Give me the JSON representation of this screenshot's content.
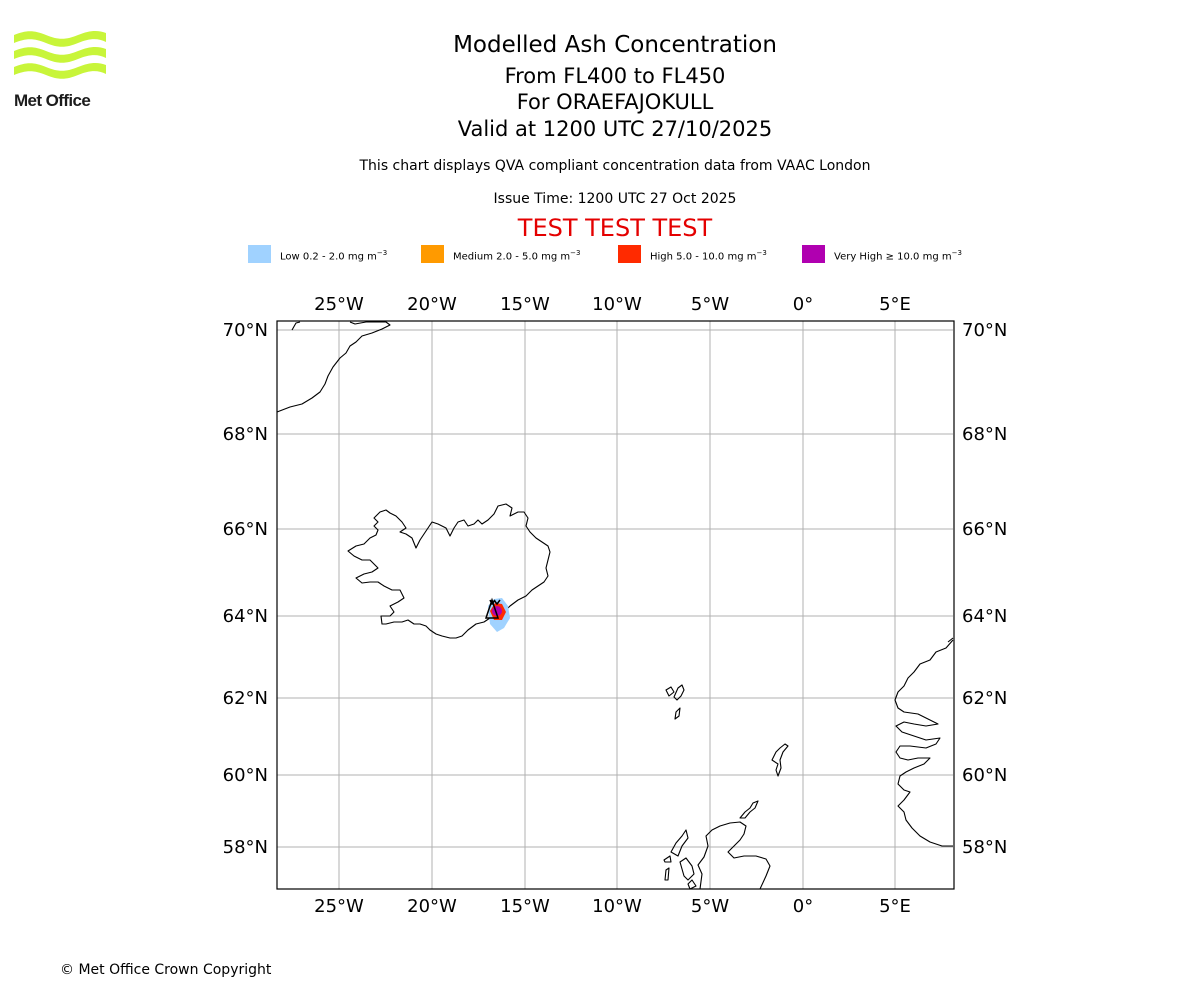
{
  "branding": {
    "logo_text": "Met Office",
    "logo_color": "#c8f53a"
  },
  "header": {
    "title": "Modelled Ash Concentration",
    "level_range": "From FL400 to FL450",
    "volcano": "For ORAEFAJOKULL",
    "valid_time": "Valid at 1200 UTC 27/10/2025",
    "description": "This chart displays QVA compliant concentration data from VAAC London",
    "issue_time": "Issue Time: 1200 UTC 27 Oct 2025",
    "test_banner": "TEST TEST TEST"
  },
  "legend": [
    {
      "label": "Low 0.2 - 2.0 mg m",
      "exponent": "−3",
      "color": "#a0d2ff"
    },
    {
      "label": "Medium 2.0 - 5.0 mg m",
      "exponent": "−3",
      "color": "#ff9a00"
    },
    {
      "label": "High 5.0 - 10.0 mg m",
      "exponent": "−3",
      "color": "#ff2a00"
    },
    {
      "label": "Very High  ≥  10.0 mg m",
      "exponent": "−3",
      "color": "#b000b0"
    }
  ],
  "map": {
    "lon_ticks": [
      "25°W",
      "20°W",
      "15°W",
      "10°W",
      "5°W",
      "0°",
      "5°E"
    ],
    "lat_ticks": [
      "70°N",
      "68°N",
      "66°N",
      "64°N",
      "62°N",
      "60°N",
      "58°N"
    ],
    "grid_color": "#b0b0b0",
    "volcano_symbol": "volcano-triangle"
  },
  "footer": {
    "copyright": "© Met Office Crown Copyright"
  }
}
